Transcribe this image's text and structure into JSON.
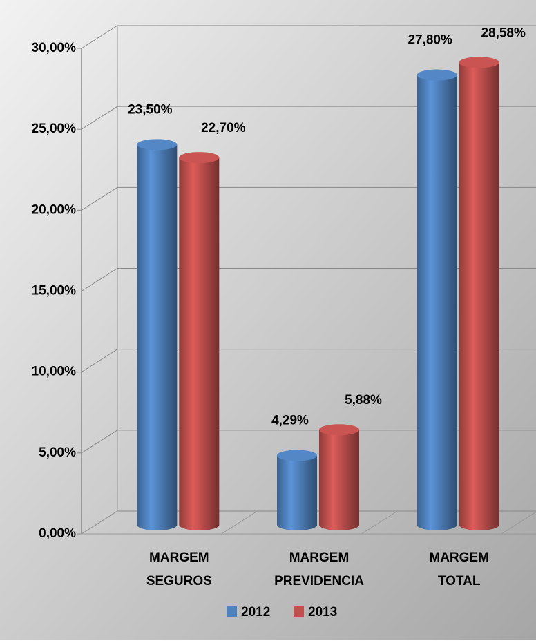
{
  "chart_data": {
    "type": "bar",
    "categories": [
      "MARGEM SEGUROS",
      "MARGEM PREVIDENCIA",
      "MARGEM TOTAL"
    ],
    "series": [
      {
        "name": "2012",
        "color": "#4f81bd",
        "values": [
          23.5,
          4.29,
          27.8
        ],
        "value_labels": [
          "23,50%",
          "4,29%",
          "27,80%"
        ]
      },
      {
        "name": "2013",
        "color": "#c0504d",
        "values": [
          22.7,
          5.88,
          28.58
        ],
        "value_labels": [
          "22,70%",
          "5,88%",
          "28,58%"
        ]
      }
    ],
    "ylim": [
      0,
      30
    ],
    "yticks": [
      {
        "value": 0,
        "label": "0,00%"
      },
      {
        "value": 5,
        "label": "5,00%"
      },
      {
        "value": 10,
        "label": "10,00%"
      },
      {
        "value": 15,
        "label": "15,00%"
      },
      {
        "value": 20,
        "label": "20,00%"
      },
      {
        "value": 25,
        "label": "25,00%"
      },
      {
        "value": 30,
        "label": "30,00%"
      }
    ],
    "grid": true,
    "legend": "bottom"
  }
}
